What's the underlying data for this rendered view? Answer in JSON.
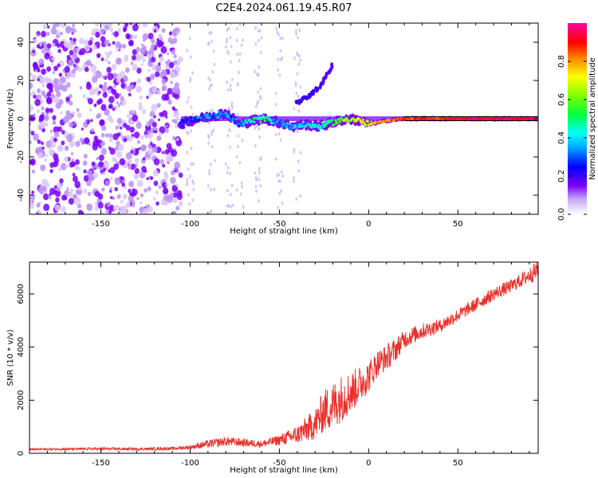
{
  "title": "C2E4.2024.061.19.45.R07",
  "colorbar": {
    "label": "Normalized spectral amplitude",
    "ticks": [
      "0.0",
      "0.2",
      "0.4",
      "0.6",
      "0.8"
    ],
    "tick_values": [
      0.0,
      0.2,
      0.4,
      0.6,
      0.8
    ],
    "range": [
      0,
      1
    ],
    "stops": [
      {
        "v": 0.0,
        "c": "#ffffff"
      },
      {
        "v": 0.08,
        "c": "#c4a6f5"
      },
      {
        "v": 0.15,
        "c": "#7a00ff"
      },
      {
        "v": 0.25,
        "c": "#0000ff"
      },
      {
        "v": 0.35,
        "c": "#00a8ff"
      },
      {
        "v": 0.42,
        "c": "#00ffff"
      },
      {
        "v": 0.52,
        "c": "#00ff40"
      },
      {
        "v": 0.62,
        "c": "#80ff00"
      },
      {
        "v": 0.72,
        "c": "#ffff00"
      },
      {
        "v": 0.82,
        "c": "#ff8000"
      },
      {
        "v": 0.9,
        "c": "#ff0000"
      },
      {
        "v": 1.0,
        "c": "#ff00a0"
      }
    ]
  },
  "chart_data": [
    {
      "type": "heatmap",
      "title": "C2E4.2024.061.19.45.R07",
      "xlabel": "Height of straight line (km)",
      "ylabel": "Frequency (Hz)",
      "xlim": [
        -190,
        95
      ],
      "ylim": [
        -50,
        50
      ],
      "xticks": [
        -150,
        -100,
        -50,
        0,
        50
      ],
      "yticks": [
        -40,
        -20,
        0,
        20,
        40
      ],
      "xtick_labels": [
        "-150",
        "-100",
        "-50",
        "0",
        "50"
      ],
      "ytick_labels": [
        "-40",
        "-20",
        "0",
        "20",
        "40"
      ],
      "features": {
        "noise_region": {
          "x_from": -190,
          "x_to": -105,
          "amplitude": 0.15
        },
        "carrier_line": {
          "freq_hz": 0,
          "x_from": -105,
          "x_to": 95
        },
        "carrier_trace": {
          "x": [
            -106,
            -100,
            -90,
            -80,
            -72,
            -65,
            -58,
            -50,
            -42,
            -35,
            -28,
            -20,
            -12,
            -5,
            0,
            5,
            10,
            20,
            30,
            40,
            50,
            60,
            70,
            80,
            90,
            95
          ],
          "freq": [
            -3,
            -1,
            1,
            3,
            -3,
            -1,
            0,
            -2,
            -4,
            -3,
            -4,
            -2,
            0,
            -1,
            -3,
            -2,
            -1,
            0,
            0,
            0,
            0,
            0,
            0,
            0,
            0,
            0
          ],
          "amp": [
            0.22,
            0.3,
            0.32,
            0.34,
            0.3,
            0.45,
            0.5,
            0.3,
            0.38,
            0.4,
            0.42,
            0.55,
            0.62,
            0.7,
            0.75,
            0.78,
            0.82,
            0.86,
            0.88,
            0.9,
            0.92,
            0.93,
            0.94,
            0.95,
            0.96,
            0.96
          ]
        },
        "upward_streak": {
          "x": [
            -40,
            -33,
            -26,
            -20
          ],
          "freq": [
            8,
            12,
            18,
            28
          ],
          "amp": [
            0.2,
            0.2,
            0.18,
            0.15
          ]
        }
      }
    },
    {
      "type": "line",
      "xlabel": "Height of straight line (km)",
      "ylabel": "SNR (10 * v/v)",
      "xlim": [
        -190,
        95
      ],
      "ylim": [
        0,
        7200
      ],
      "xticks": [
        -150,
        -100,
        -50,
        0,
        50
      ],
      "yticks": [
        0,
        2000,
        4000,
        6000
      ],
      "xtick_labels": [
        "-150",
        "-100",
        "-50",
        "0",
        "50"
      ],
      "ytick_labels": [
        "0",
        "2000",
        "4000",
        "6000"
      ],
      "series": [
        {
          "name": "SNR",
          "color": "#e8302a",
          "x": [
            -190,
            -170,
            -150,
            -130,
            -110,
            -100,
            -90,
            -80,
            -70,
            -60,
            -50,
            -40,
            -30,
            -25,
            -20,
            -15,
            -10,
            -5,
            0,
            5,
            10,
            15,
            20,
            30,
            40,
            50,
            60,
            70,
            80,
            90,
            95
          ],
          "y": [
            150,
            160,
            170,
            160,
            180,
            230,
            350,
            450,
            400,
            350,
            500,
            700,
            1100,
            1600,
            1800,
            2100,
            2300,
            2600,
            2900,
            3400,
            3600,
            3900,
            4300,
            4600,
            4800,
            5200,
            5600,
            6000,
            6300,
            6700,
            6900
          ],
          "noise": [
            40,
            40,
            50,
            50,
            60,
            80,
            150,
            180,
            150,
            130,
            200,
            350,
            600,
            800,
            900,
            900,
            800,
            700,
            600,
            500,
            500,
            450,
            350,
            300,
            250,
            250,
            250,
            250,
            250,
            300,
            400
          ]
        }
      ]
    }
  ]
}
